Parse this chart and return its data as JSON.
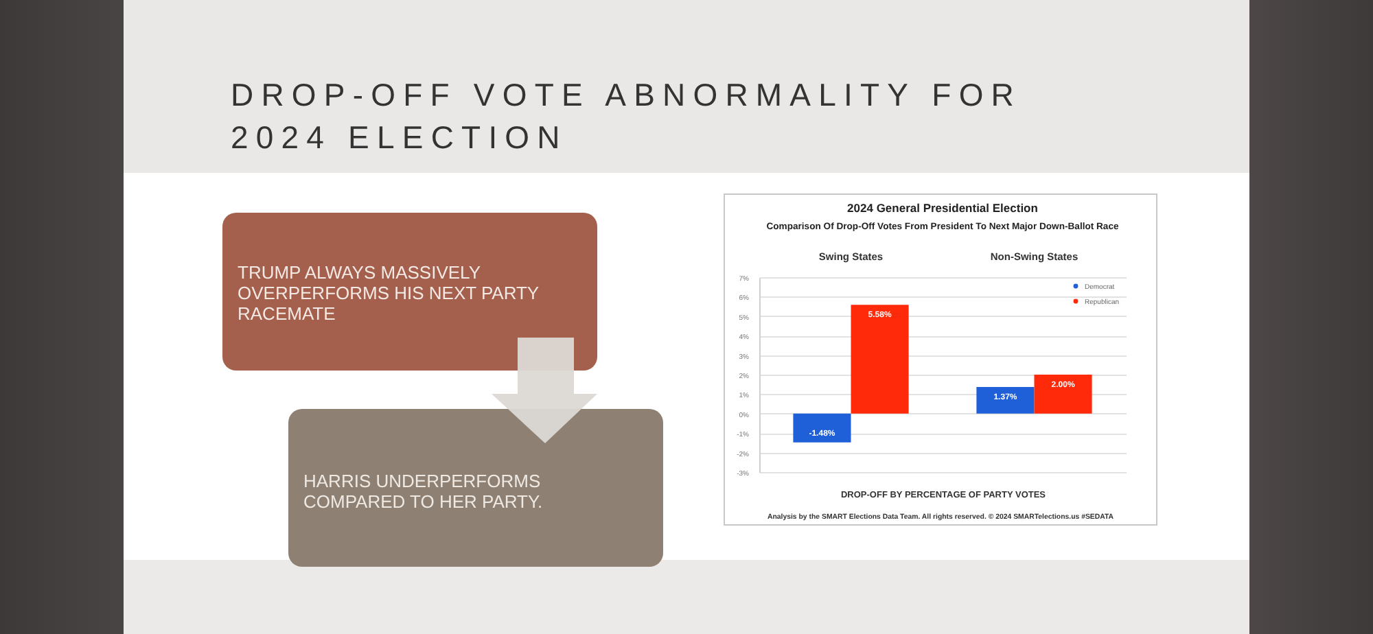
{
  "chart_data": {
    "type": "bar",
    "title": "2024 General Presidential Election",
    "subtitle": "Comparison Of Drop-Off Votes From President To Next Major Down-Ballot Race",
    "xlabel": "DROP-OFF BY PERCENTAGE OF PARTY VOTES",
    "categories": [
      "Swing States",
      "Non-Swing States"
    ],
    "series": [
      {
        "name": "Democrat",
        "color": "#1f5fd8",
        "values": [
          -1.48,
          1.37
        ],
        "value_labels": [
          "-1.48%",
          "1.37%"
        ]
      },
      {
        "name": "Republican",
        "color": "#ff2a0a",
        "values": [
          5.58,
          2.0
        ],
        "value_labels": [
          "5.58%",
          "2.00%"
        ]
      }
    ],
    "ylim": [
      -3,
      7
    ],
    "yticks": [
      {
        "value": -3,
        "label": "-3%"
      },
      {
        "value": -2,
        "label": "-2%"
      },
      {
        "value": -1,
        "label": "-1%"
      },
      {
        "value": 0,
        "label": "0%"
      },
      {
        "value": 1,
        "label": "1%"
      },
      {
        "value": 2,
        "label": "2%"
      },
      {
        "value": 3,
        "label": "3%"
      },
      {
        "value": 4,
        "label": "4%"
      },
      {
        "value": 5,
        "label": "5%"
      },
      {
        "value": 6,
        "label": "6%"
      },
      {
        "value": 7,
        "label": "7%"
      }
    ],
    "grid": "y",
    "legend": "top right",
    "annotations": [
      "DROP-OFF VOTE ABNORMALITY FOR 2024 ELECTION",
      "TRUMP ALWAYS MASSIVELY OVERPERFORMS HIS NEXT PARTY RACEMATE",
      "HARRIS UNDERPERFORMS COMPARED TO HER PARTY.",
      "Analysis by the SMART Elections Data Team. All rights reserved. © 2024 SMARTelections.us #SEDATA"
    ]
  }
}
